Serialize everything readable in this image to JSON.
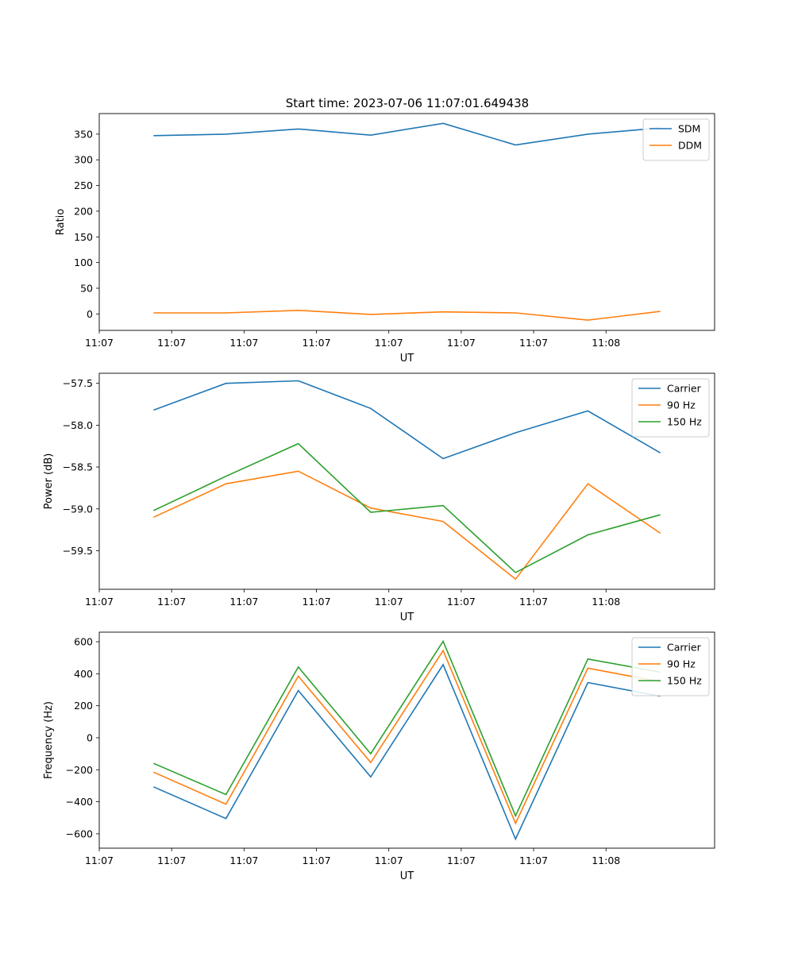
{
  "figure": {
    "title": "Start time: 2023-07-06 11:07:01.649438"
  },
  "colors": {
    "c0": "#1f77b4",
    "c1": "#ff7f0e",
    "c2": "#2ca02c"
  },
  "chart_data": [
    {
      "type": "line",
      "title": "Start time: 2023-07-06 11:07:01.649438",
      "xlabel": "UT",
      "ylabel": "Ratio",
      "x_tick_labels": [
        "11:07",
        "11:07",
        "11:07",
        "11:07",
        "11:07",
        "11:07",
        "11:07",
        "11:08"
      ],
      "xlim": [
        0,
        8.5
      ],
      "ylim": [
        -32,
        390
      ],
      "y_ticks": [
        0,
        50,
        100,
        150,
        200,
        250,
        300,
        350
      ],
      "y_tick_labels": [
        "0",
        "50",
        "100",
        "150",
        "200",
        "250",
        "300",
        "350"
      ],
      "x": [
        0.75,
        1.75,
        2.75,
        3.75,
        4.75,
        5.75,
        6.75,
        7.75
      ],
      "legend_location": "upper right",
      "series": [
        {
          "name": "SDM",
          "color_key": "c0",
          "values": [
            347,
            350,
            360,
            348,
            371,
            329,
            350,
            362
          ]
        },
        {
          "name": "DDM",
          "color_key": "c1",
          "values": [
            2,
            2,
            7,
            -1,
            4,
            2,
            -12,
            5
          ]
        }
      ]
    },
    {
      "type": "line",
      "title": "",
      "xlabel": "UT",
      "ylabel": "Power (dB)",
      "x_tick_labels": [
        "11:07",
        "11:07",
        "11:07",
        "11:07",
        "11:07",
        "11:07",
        "11:07",
        "11:08"
      ],
      "xlim": [
        0,
        8.5
      ],
      "ylim": [
        -59.96,
        -57.38
      ],
      "y_ticks": [
        -59.5,
        -59.0,
        -58.5,
        -58.0,
        -57.5
      ],
      "y_tick_labels": [
        "−59.5",
        "−59.0",
        "−58.5",
        "−58.0",
        "−57.5"
      ],
      "x": [
        0.75,
        1.75,
        2.75,
        3.75,
        4.75,
        5.75,
        6.75,
        7.75
      ],
      "legend_location": "upper right",
      "series": [
        {
          "name": "Carrier",
          "color_key": "c0",
          "values": [
            -57.82,
            -57.5,
            -57.47,
            -57.8,
            -58.4,
            -58.09,
            -57.83,
            -58.33
          ]
        },
        {
          "name": "90 Hz",
          "color_key": "c1",
          "values": [
            -59.1,
            -58.7,
            -58.55,
            -58.99,
            -59.15,
            -59.84,
            -58.7,
            -59.29
          ]
        },
        {
          "name": "150 Hz",
          "color_key": "c2",
          "values": [
            -59.02,
            -58.61,
            -58.22,
            -59.04,
            -58.96,
            -59.76,
            -59.31,
            -59.07
          ]
        }
      ]
    },
    {
      "type": "line",
      "title": "",
      "xlabel": "UT",
      "ylabel": "Frequency (Hz)",
      "x_tick_labels": [
        "11:07",
        "11:07",
        "11:07",
        "11:07",
        "11:07",
        "11:07",
        "11:07",
        "11:08"
      ],
      "xlim": [
        0,
        8.5
      ],
      "ylim": [
        -690,
        660
      ],
      "y_ticks": [
        -600,
        -400,
        -200,
        0,
        200,
        400,
        600
      ],
      "y_tick_labels": [
        "−600",
        "−400",
        "−200",
        "0",
        "200",
        "400",
        "600"
      ],
      "x": [
        0.75,
        1.75,
        2.75,
        3.75,
        4.75,
        5.75,
        6.75,
        7.75
      ],
      "legend_location": "upper right",
      "series": [
        {
          "name": "Carrier",
          "color_key": "c0",
          "values": [
            -307,
            -505,
            295,
            -245,
            457,
            -633,
            345,
            260
          ]
        },
        {
          "name": "90 Hz",
          "color_key": "c1",
          "values": [
            -215,
            -415,
            385,
            -155,
            545,
            -535,
            435,
            350
          ]
        },
        {
          "name": "150 Hz",
          "color_key": "c2",
          "values": [
            -160,
            -355,
            442,
            -100,
            603,
            -488,
            492,
            410
          ]
        }
      ]
    }
  ]
}
